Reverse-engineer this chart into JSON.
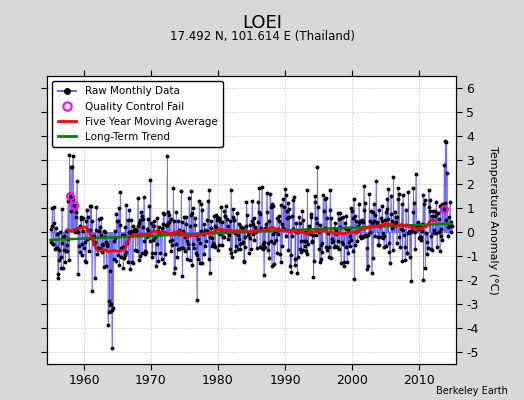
{
  "title": "LOEI",
  "subtitle": "17.492 N, 101.614 E (Thailand)",
  "ylabel": "Temperature Anomaly (°C)",
  "credit": "Berkeley Earth",
  "ylim": [
    -5.5,
    6.5
  ],
  "xlim": [
    1954.5,
    2015.5
  ],
  "yticks": [
    -5,
    -4,
    -3,
    -2,
    -1,
    0,
    1,
    2,
    3,
    4,
    5,
    6
  ],
  "xticks": [
    1960,
    1970,
    1980,
    1990,
    2000,
    2010
  ],
  "bg_color": "#d8d8d8",
  "plot_bg": "#ffffff",
  "raw_line_color": "#4444ff",
  "raw_marker_color": "black",
  "qc_fail_color": "magenta",
  "moving_avg_color": "red",
  "trend_color": "green",
  "seed": 42,
  "start_year": 1955.0,
  "end_year": 2014.0,
  "n_months": 720
}
